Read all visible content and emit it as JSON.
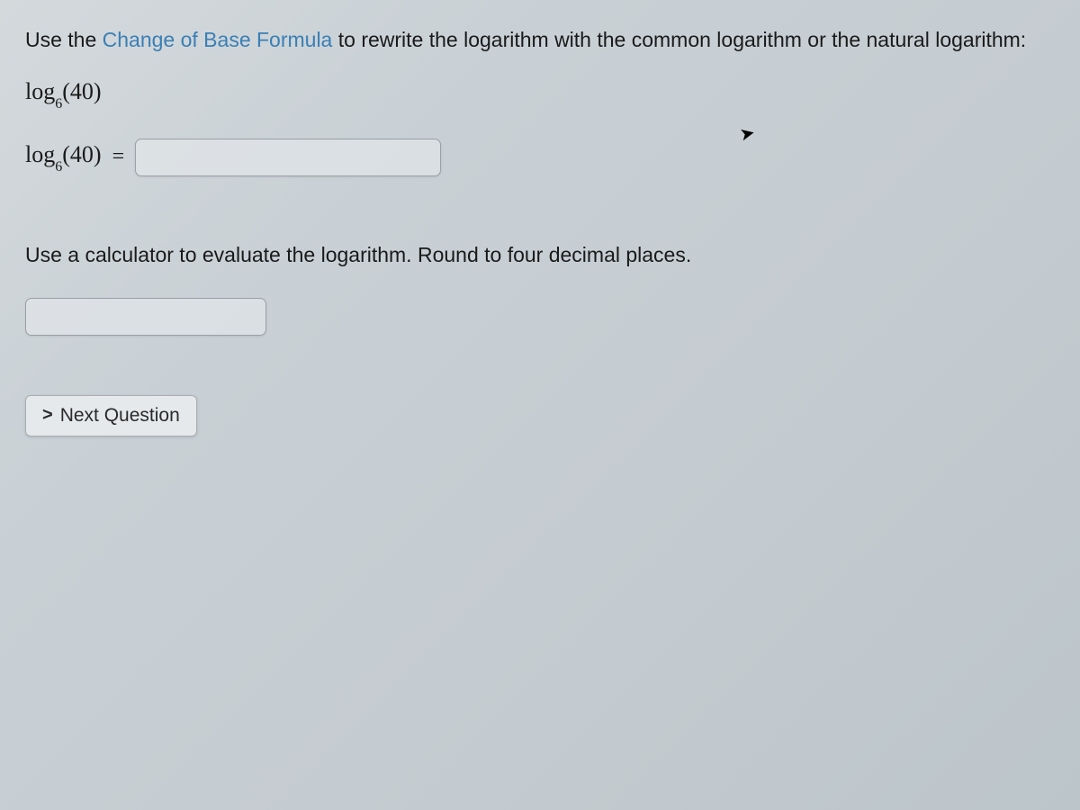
{
  "question": {
    "prefix": "Use the ",
    "link_text": "Change of Base Formula",
    "suffix": " to rewrite the logarithm with the common logarithm or the natural logarithm:"
  },
  "expression": {
    "log_text": "log",
    "base": "6",
    "argument": "(40)"
  },
  "equation": {
    "log_text": "log",
    "base": "6",
    "argument": "(40)",
    "equals": "=",
    "input_value": ""
  },
  "second_prompt": "Use a calculator to evaluate the logarithm. Round to four decimal places.",
  "second_input_value": "",
  "next_button": {
    "chevron": ">",
    "label": "Next Question"
  },
  "colors": {
    "link": "#3a7fb5",
    "text": "#1a1a1a",
    "input_border": "#9aa0a5",
    "button_bg": "#e6e9ec"
  }
}
